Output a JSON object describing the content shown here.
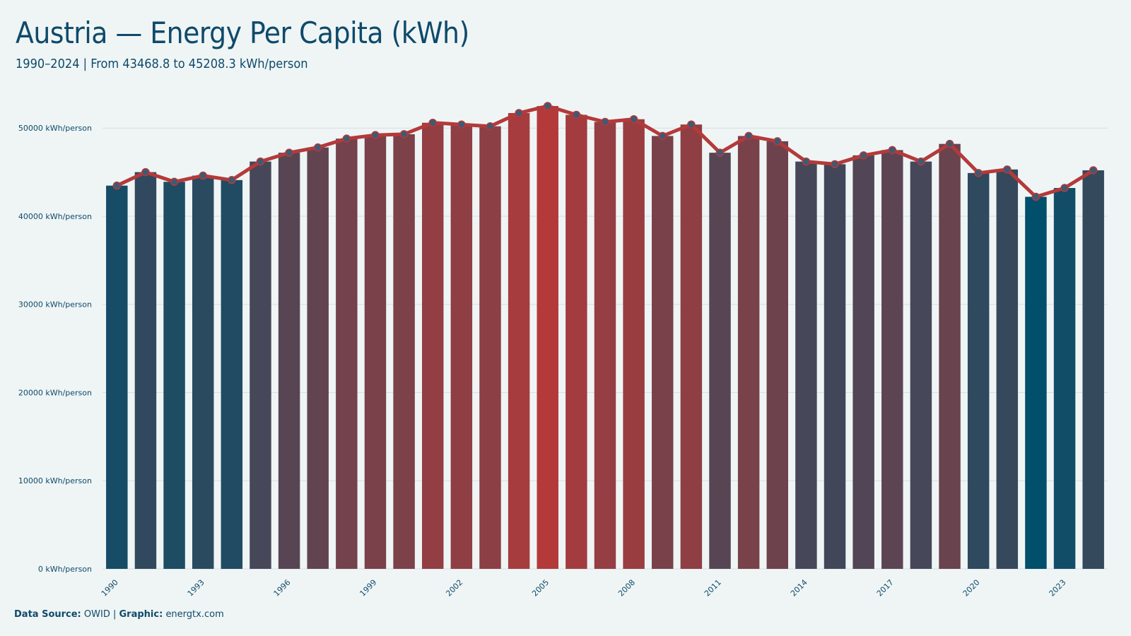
{
  "title": "Austria — Energy Per Capita (kWh)",
  "subtitle": "1990–2024 | From 43468.8 to 45208.3 kWh/person",
  "footer": {
    "source_label": "Data Source:",
    "source_value": "OWID",
    "separator": "|",
    "graphic_label": "Graphic:",
    "graphic_value": "energtx.com"
  },
  "colors": {
    "background": "#eff5f5",
    "text": "#0f4a6b",
    "line": "#b43a3a",
    "marker": "#3e5a75",
    "bar_low": "#004f6b",
    "bar_high": "#b43a3a",
    "grid": "#d7dfe2"
  },
  "chart_data": {
    "type": "bar",
    "title": "Austria — Energy Per Capita (kWh)",
    "subtitle": "1990–2024 | From 43468.8 to 45208.3 kWh/person",
    "xlabel": "",
    "ylabel": "",
    "ylim": [
      0,
      52500
    ],
    "y_ticks": [
      0,
      10000,
      20000,
      30000,
      40000,
      50000
    ],
    "y_tick_suffix": " kWh/person",
    "x_tick_labels": [
      "1990",
      "1993",
      "1996",
      "1999",
      "2002",
      "2005",
      "2008",
      "2011",
      "2014",
      "2017",
      "2020",
      "2023"
    ],
    "grid": "horizontal",
    "legend": "none",
    "overlay": "line with circle markers through bar tops",
    "color_scale": "bar fill from dark teal (lowest) to red (highest)",
    "categories": [
      "1990",
      "1991",
      "1992",
      "1993",
      "1994",
      "1995",
      "1996",
      "1997",
      "1998",
      "1999",
      "2000",
      "2001",
      "2002",
      "2003",
      "2004",
      "2005",
      "2006",
      "2007",
      "2008",
      "2009",
      "2010",
      "2011",
      "2012",
      "2013",
      "2014",
      "2015",
      "2016",
      "2017",
      "2018",
      "2019",
      "2020",
      "2021",
      "2022",
      "2023",
      "2024"
    ],
    "values": [
      43468.8,
      45000,
      43900,
      44600,
      44100,
      46200,
      47200,
      47800,
      48800,
      49200,
      49300,
      50600,
      50400,
      50200,
      51700,
      52500,
      51500,
      50700,
      51000,
      49100,
      50400,
      47200,
      49100,
      48500,
      46200,
      45900,
      46900,
      47500,
      46200,
      48200,
      44900,
      45300,
      42200,
      43200,
      45208.3
    ]
  }
}
